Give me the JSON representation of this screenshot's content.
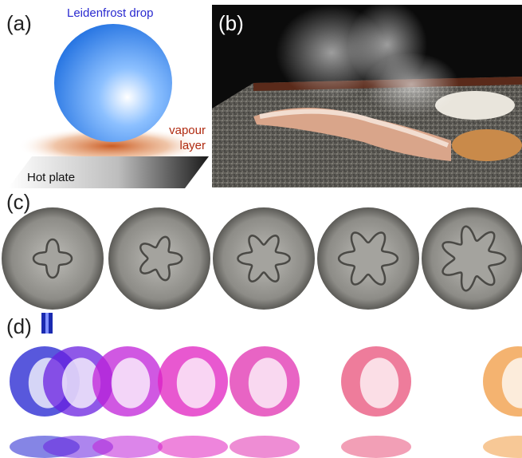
{
  "figure": {
    "panel_labels": {
      "a": "(a)",
      "b": "(b)",
      "c": "(c)",
      "d": "(d)"
    },
    "panel_a": {
      "drop_label": "Leidenfrost drop",
      "vapour_label_line1": "vapour",
      "vapour_label_line2": "layer",
      "plate_label": "Hot plate",
      "colors": {
        "drop": "#1f6fe0",
        "vapour": "#c8541a",
        "label_drop": "#2a2ad0",
        "label_vapour": "#b02a10"
      }
    },
    "panel_b": {
      "description_visible": false
    },
    "panel_c": {
      "star_lobes": [
        4,
        5,
        6,
        6,
        7
      ]
    },
    "panel_d": {
      "drop_colors": [
        "#2020d0",
        "#6a20e0",
        "#c020d8",
        "#e020c0",
        "#e030b0",
        "#e8507a",
        "#f09a40"
      ]
    }
  }
}
